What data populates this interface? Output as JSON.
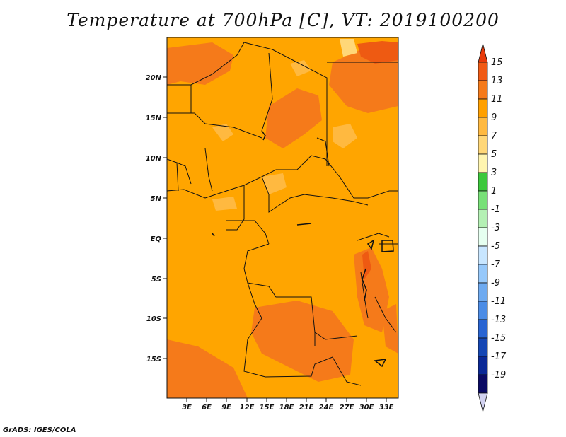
{
  "title": "Temperature at 700hPa [C], VT: 2019100200",
  "credit": "GrADS: IGES/COLA",
  "map": {
    "lat_labels": [
      "20N",
      "15N",
      "10N",
      "5N",
      "EQ",
      "5S",
      "10S",
      "15S"
    ],
    "lon_labels": [
      "3E",
      "6E",
      "9E",
      "12E",
      "15E",
      "18E",
      "21E",
      "24E",
      "27E",
      "30E",
      "33E"
    ],
    "background_color": "#FFA500"
  },
  "colorbar": {
    "labels": [
      "15",
      "13",
      "11",
      "9",
      "7",
      "5",
      "3",
      "1",
      "-1",
      "-3",
      "-5",
      "-7",
      "-9",
      "-11",
      "-13",
      "-15",
      "-17",
      "-19"
    ],
    "colors": [
      "#E83A0A",
      "#F05A14",
      "#F57A1A",
      "#FFA000",
      "#FFB940",
      "#FFD778",
      "#FFF5B0",
      "#3CC83C",
      "#78E078",
      "#B4F0B4",
      "#E6FFF0",
      "#C8E6FF",
      "#96C8FA",
      "#6EAAF0",
      "#4B8CE6",
      "#2864D2",
      "#1446B4",
      "#0A2896",
      "#0A0A64",
      "#D2D2F0"
    ]
  }
}
